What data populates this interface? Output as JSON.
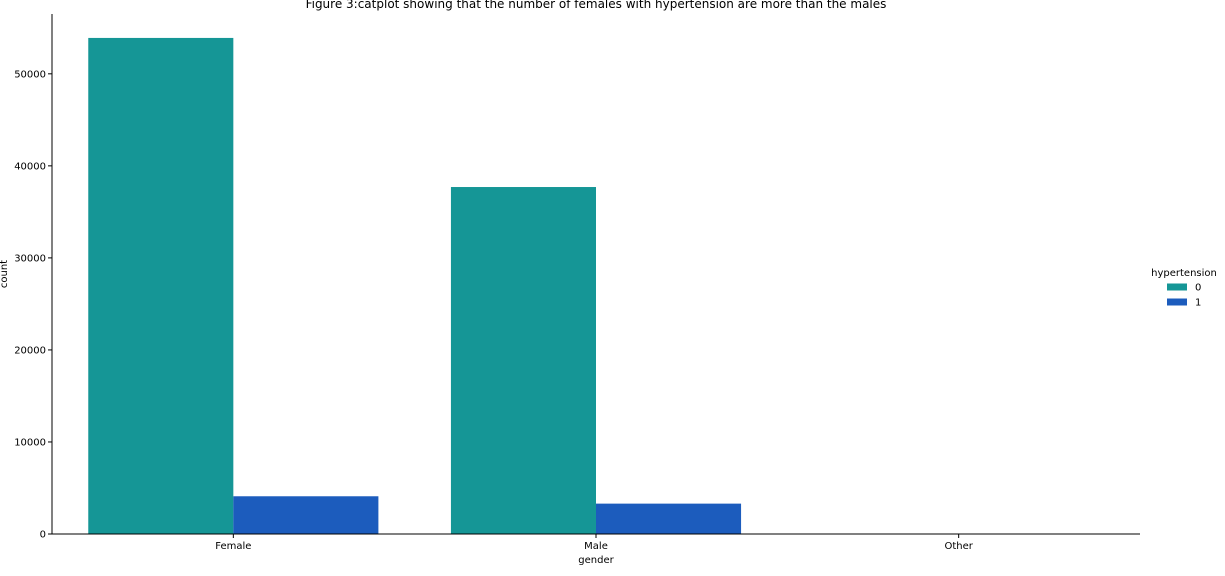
{
  "chart_data": {
    "type": "bar",
    "title": "Figure 3:catplot showing that the number of females with hypertension are more than the males",
    "xlabel": "gender",
    "ylabel": "count",
    "categories": [
      "Female",
      "Male",
      "Other"
    ],
    "series": [
      {
        "name": "0",
        "values": [
          53900,
          37700,
          11
        ],
        "color": "#159696"
      },
      {
        "name": "1",
        "values": [
          4100,
          3300,
          0
        ],
        "color": "#1c5cbd"
      }
    ],
    "ylim": [
      0,
      56500
    ],
    "yticks": [
      0,
      10000,
      20000,
      30000,
      40000,
      50000
    ],
    "legend": {
      "title": "hypertension",
      "placement": "right"
    },
    "grid": false
  }
}
